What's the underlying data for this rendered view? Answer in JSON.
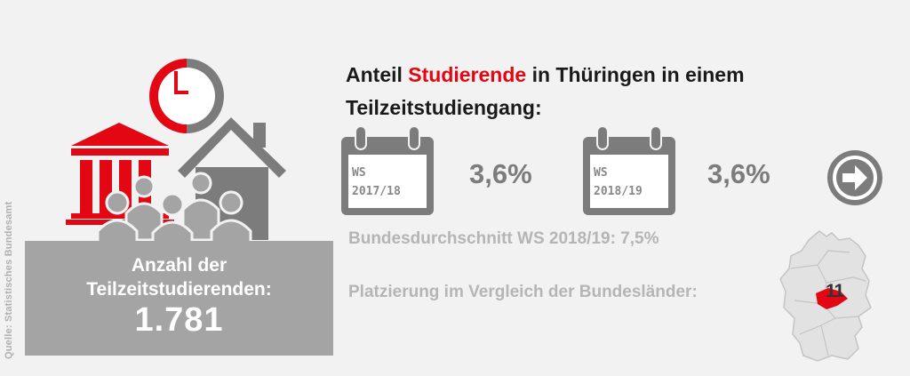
{
  "source": "Quelle: Statistisches Bundesamt",
  "count_box": {
    "label_line1": "Anzahl der",
    "label_line2": "Teilzeitstudierenden:",
    "value": "1.781"
  },
  "title": {
    "prefix": "Anteil ",
    "highlight": "Studierende",
    "suffix": " in Thüringen in einem",
    "line2": "Teilzeitstudiengang:"
  },
  "semesters": [
    {
      "line1": "WS",
      "line2": "2017/18",
      "value": "3,6%"
    },
    {
      "line1": "WS",
      "line2": "2018/19",
      "value": "3,6%"
    }
  ],
  "average": "Bundesdurchschnitt WS 2018/19: 7,5%",
  "ranking": {
    "label": "Platzierung im Vergleich der Bundesländer:",
    "value": "11"
  },
  "colors": {
    "accent": "#e30613",
    "gray_dark": "#7c7c7c",
    "gray_mid": "#a4a4a4",
    "gray_light": "#b5b5b5"
  },
  "icons": [
    "clock-icon",
    "university-building-icon",
    "house-icon",
    "people-group-icon",
    "calendar-icon",
    "arrow-right-circle-icon",
    "germany-map-icon"
  ]
}
